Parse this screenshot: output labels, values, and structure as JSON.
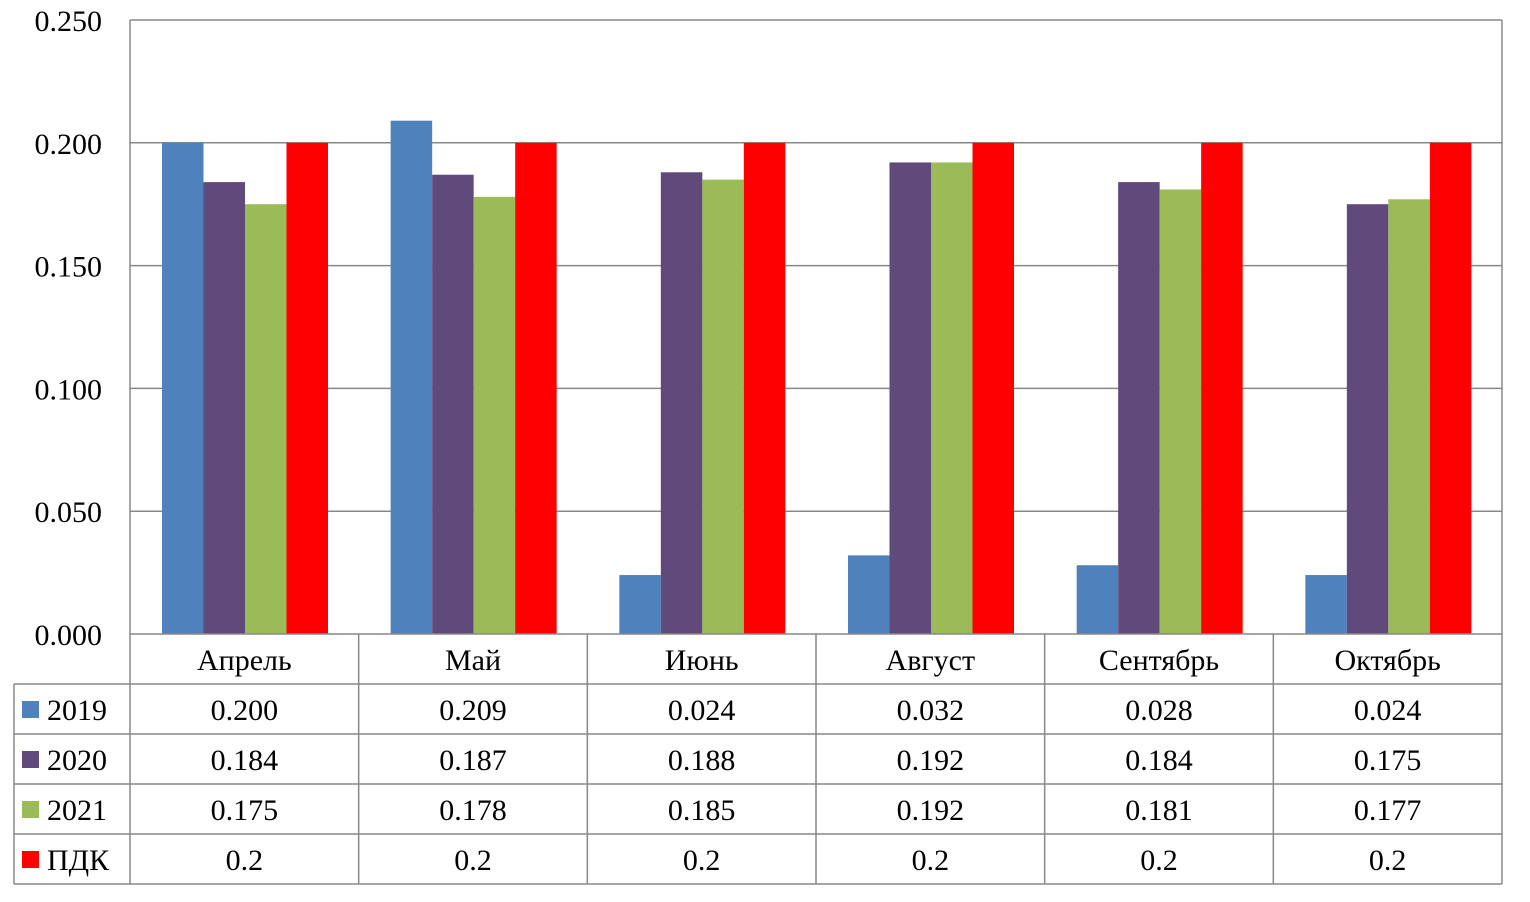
{
  "chart_data": {
    "type": "bar",
    "categories": [
      "Апрель",
      "Май",
      "Июнь",
      "Август",
      "Сентябрь",
      "Октябрь"
    ],
    "series": [
      {
        "name": "2019",
        "color": "#4F81BD",
        "values": [
          0.2,
          0.209,
          0.024,
          0.032,
          0.028,
          0.024
        ],
        "labels": [
          "0.200",
          "0.209",
          "0.024",
          "0.032",
          "0.028",
          "0.024"
        ]
      },
      {
        "name": "2020",
        "color": "#604A7B",
        "values": [
          0.184,
          0.187,
          0.188,
          0.192,
          0.184,
          0.175
        ],
        "labels": [
          "0.184",
          "0.187",
          "0.188",
          "0.192",
          "0.184",
          "0.175"
        ]
      },
      {
        "name": "2021",
        "color": "#9BBB59",
        "values": [
          0.175,
          0.178,
          0.185,
          0.192,
          0.181,
          0.177
        ],
        "labels": [
          "0.175",
          "0.178",
          "0.185",
          "0.192",
          "0.181",
          "0.177"
        ]
      },
      {
        "name": "ПДК",
        "color": "#FF0000",
        "values": [
          0.2,
          0.2,
          0.2,
          0.2,
          0.2,
          0.2
        ],
        "labels": [
          "0.2",
          "0.2",
          "0.2",
          "0.2",
          "0.2",
          "0.2"
        ]
      }
    ],
    "ylim": [
      0,
      0.25
    ],
    "yticks": [
      "0.000",
      "0.050",
      "0.100",
      "0.150",
      "0.200",
      "0.250"
    ],
    "ytick_values": [
      0,
      0.05,
      0.1,
      0.15,
      0.2,
      0.25
    ],
    "grid": true,
    "legend": "data-table"
  }
}
